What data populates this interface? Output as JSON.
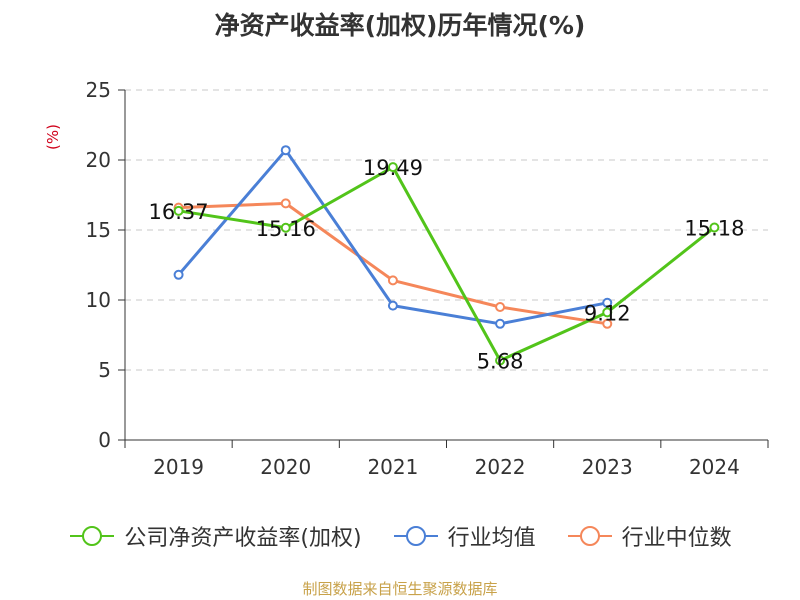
{
  "chart_data": {
    "type": "line",
    "title": "净资产收益率(加权)历年情况(%)",
    "ylabel": "(%)",
    "xlabel": "",
    "categories": [
      "2019",
      "2020",
      "2021",
      "2022",
      "2023",
      "2024"
    ],
    "ylim": [
      0,
      25
    ],
    "yticks": [
      0,
      5,
      10,
      15,
      20,
      25
    ],
    "grid": true,
    "legend_position": "bottom",
    "series": [
      {
        "name": "公司净资产收益率(加权)",
        "color": "#52c41a",
        "values": [
          16.37,
          15.16,
          19.49,
          5.68,
          9.12,
          15.18
        ],
        "labels": [
          "16.37",
          "15.16",
          "19.49",
          "5.68",
          "9.12",
          "15.18"
        ]
      },
      {
        "name": "行业均值",
        "color": "#4a7fd6",
        "values": [
          11.8,
          20.7,
          9.6,
          8.3,
          9.8,
          null
        ]
      },
      {
        "name": "行业中位数",
        "color": "#f5875a",
        "values": [
          16.6,
          16.9,
          11.4,
          9.5,
          8.3,
          null
        ]
      }
    ]
  },
  "source": "制图数据来自恒生聚源数据库"
}
